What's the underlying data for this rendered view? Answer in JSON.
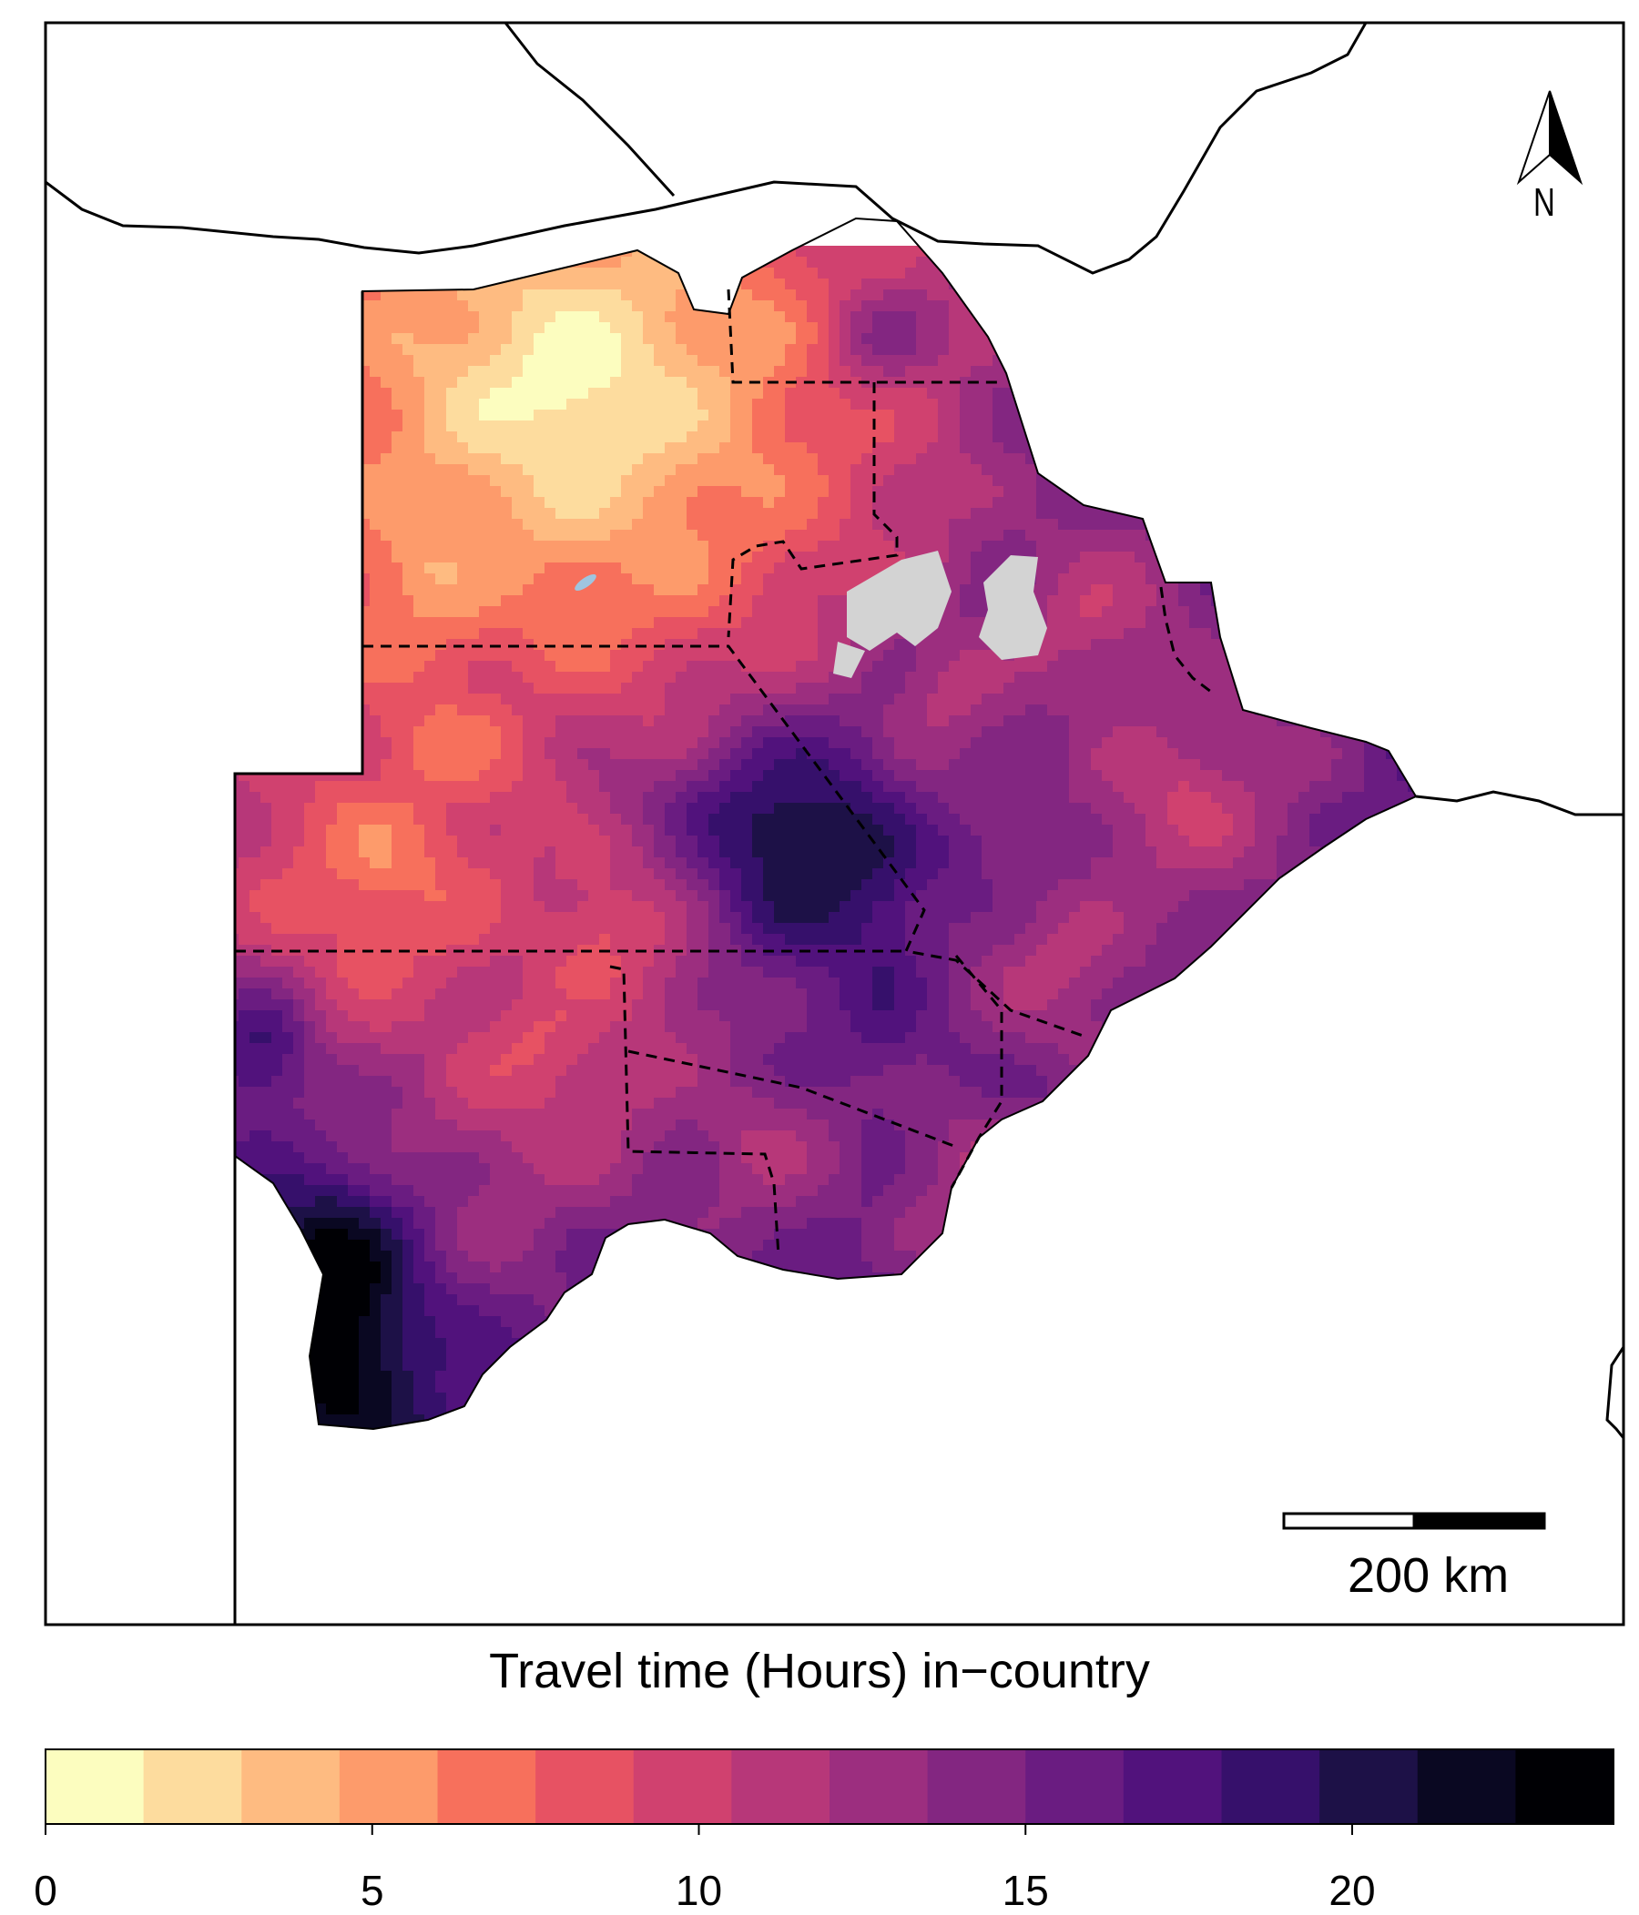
{
  "map": {
    "north_label": "N",
    "scale_bar_label": "200 km",
    "no_data_color": "#d3d3d3",
    "water_color": "#9fc5e0",
    "border_color": "#000000"
  },
  "legend": {
    "title": "Travel time (Hours) in−country",
    "range": [
      0,
      24
    ],
    "bin_colors": [
      "#fcfdbf",
      "#fddc9e",
      "#febb81",
      "#fd9b6b",
      "#f7705c",
      "#e75263",
      "#d0416f",
      "#b73779",
      "#9c2e7f",
      "#832681",
      "#6a1c81",
      "#51127c",
      "#36106b",
      "#1d1147",
      "#0a0822",
      "#000004"
    ],
    "tick_values": [
      0,
      5,
      10,
      15,
      20
    ],
    "tick_labels": [
      "0",
      "5",
      "10",
      "15",
      "20"
    ]
  }
}
